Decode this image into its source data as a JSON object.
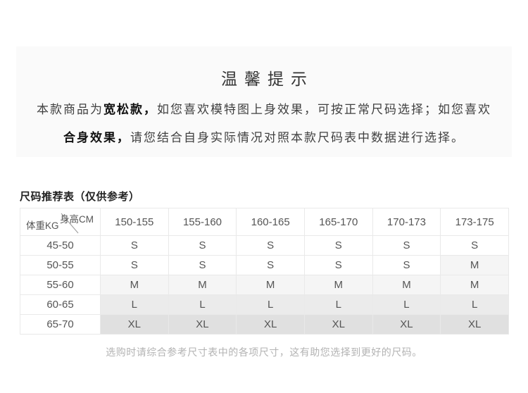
{
  "colors": {
    "page_bg": "#ffffff",
    "notice_box_bg": "#fafafa",
    "table_border": "#e9e9e9",
    "size_s_bg": "#ffffff",
    "size_m_bg": "#f5f5f5",
    "size_l_bg": "#ebebeb",
    "size_xl_bg": "#e0e0e0",
    "text_primary": "#333333",
    "text_table": "#555555",
    "text_caption": "#b3b3b3"
  },
  "notice": {
    "title": "温馨提示",
    "line1": [
      {
        "text": "本款商品为",
        "bold": false
      },
      {
        "text": "宽松款，",
        "bold": true
      },
      {
        "text": "如您喜欢模特图上身效果，可按正常尺码选择；如您喜欢",
        "bold": false
      }
    ],
    "line2": [
      {
        "text": "合身效果，",
        "bold": true
      },
      {
        "text": "请您结合自身实际情况对照本款尺码表中数据进行选择。",
        "bold": false
      }
    ]
  },
  "size_table": {
    "title": "尺码推荐表（仅供参考）",
    "corner_top_label": "身高CM",
    "corner_bottom_label": "体重KG",
    "columns": [
      "150-155",
      "155-160",
      "160-165",
      "165-170",
      "170-173",
      "173-175"
    ],
    "rows": [
      {
        "weight": "45-50",
        "sizes": [
          "S",
          "S",
          "S",
          "S",
          "S",
          "S"
        ]
      },
      {
        "weight": "50-55",
        "sizes": [
          "S",
          "S",
          "S",
          "S",
          "S",
          "M"
        ]
      },
      {
        "weight": "55-60",
        "sizes": [
          "M",
          "M",
          "M",
          "M",
          "M",
          "M"
        ]
      },
      {
        "weight": "60-65",
        "sizes": [
          "L",
          "L",
          "L",
          "L",
          "L",
          "L"
        ]
      },
      {
        "weight": "65-70",
        "sizes": [
          "XL",
          "XL",
          "XL",
          "XL",
          "XL",
          "XL"
        ]
      }
    ]
  },
  "footer_note": "选购时请综合参考尺寸表中的各项尺寸，这有助您选择到更好的尺码。"
}
